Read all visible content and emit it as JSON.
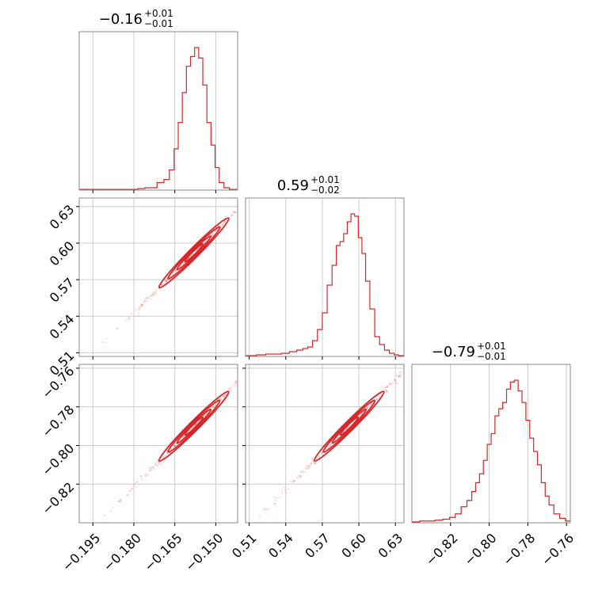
{
  "chart_data": {
    "type": "corner",
    "parameters": [
      {
        "title": {
          "value": "−0.16",
          "plus": "+0.01",
          "minus": "−0.01"
        },
        "range": [
          -0.2,
          -0.142
        ],
        "ticks": [
          -0.195,
          -0.18,
          -0.165,
          -0.15
        ],
        "tick_labels": [
          "−0.195",
          "−0.180",
          "−0.165",
          "−0.150"
        ],
        "hist_x": [
          -0.197,
          -0.195,
          -0.19,
          -0.185,
          -0.18,
          -0.177,
          -0.175,
          -0.173,
          -0.17,
          -0.168,
          -0.166,
          -0.1645,
          -0.163,
          -0.1615,
          -0.16,
          -0.1585,
          -0.157,
          -0.1555,
          -0.154,
          -0.1525,
          -0.151,
          -0.1495,
          -0.148,
          -0.146,
          -0.144
        ],
        "hist_y": [
          1,
          1,
          1,
          1,
          1,
          2,
          3,
          3,
          10,
          14,
          27,
          55,
          90,
          130,
          165,
          178,
          190,
          176,
          140,
          90,
          60,
          30,
          10,
          3,
          1
        ]
      },
      {
        "title": {
          "value": "0.59",
          "plus": "+0.01",
          "minus": "−0.02"
        },
        "range": [
          0.507,
          0.637
        ],
        "ticks": [
          0.51,
          0.54,
          0.57,
          0.6,
          0.63
        ],
        "tick_labels": [
          "0.51",
          "0.54",
          "0.57",
          "0.60",
          "0.63"
        ],
        "hist_x": [
          0.512,
          0.52,
          0.527,
          0.533,
          0.54,
          0.546,
          0.552,
          0.556,
          0.56,
          0.564,
          0.568,
          0.572,
          0.576,
          0.58,
          0.583,
          0.586,
          0.589,
          0.592,
          0.595,
          0.598,
          0.601,
          0.604,
          0.607,
          0.611,
          0.615,
          0.619,
          0.623,
          0.627,
          0.631,
          0.634
        ],
        "hist_y": [
          1,
          2,
          3,
          3,
          4,
          6,
          8,
          10,
          12,
          20,
          34,
          55,
          90,
          115,
          140,
          145,
          155,
          170,
          180,
          177,
          150,
          130,
          95,
          60,
          25,
          15,
          8,
          4,
          2,
          1
        ]
      },
      {
        "title": {
          "value": "−0.79",
          "plus": "+0.01",
          "minus": "−0.01"
        },
        "range": [
          -0.84,
          -0.758
        ],
        "ticks": [
          -0.82,
          -0.8,
          -0.78,
          -0.76
        ],
        "tick_labels": [
          "−0.82",
          "−0.80",
          "−0.78",
          "−0.76"
        ],
        "hist_x": [
          -0.838,
          -0.834,
          -0.83,
          -0.826,
          -0.822,
          -0.819,
          -0.816,
          -0.813,
          -0.81,
          -0.808,
          -0.806,
          -0.804,
          -0.802,
          -0.8,
          -0.798,
          -0.796,
          -0.794,
          -0.792,
          -0.79,
          -0.788,
          -0.786,
          -0.784,
          -0.782,
          -0.78,
          -0.778,
          -0.776,
          -0.774,
          -0.772,
          -0.77,
          -0.768,
          -0.765,
          -0.762,
          -0.759
        ],
        "hist_y": [
          1,
          2,
          2,
          3,
          4,
          6,
          10,
          18,
          25,
          35,
          45,
          55,
          70,
          88,
          100,
          120,
          128,
          135,
          150,
          158,
          160,
          148,
          135,
          115,
          95,
          80,
          65,
          45,
          30,
          20,
          10,
          5,
          2
        ]
      }
    ],
    "correlations": {
      "1_0": {
        "slope": 3.2,
        "sigma_x": 0.005,
        "sigma_y": 0.005
      },
      "2_0": {
        "slope": 2.6,
        "sigma_x": 0.005,
        "sigma_y": 0.004
      },
      "2_1": {
        "slope": 0.78,
        "sigma_x": 0.015,
        "sigma_y": 0.003
      }
    },
    "color": "#d62728",
    "grid": true
  }
}
